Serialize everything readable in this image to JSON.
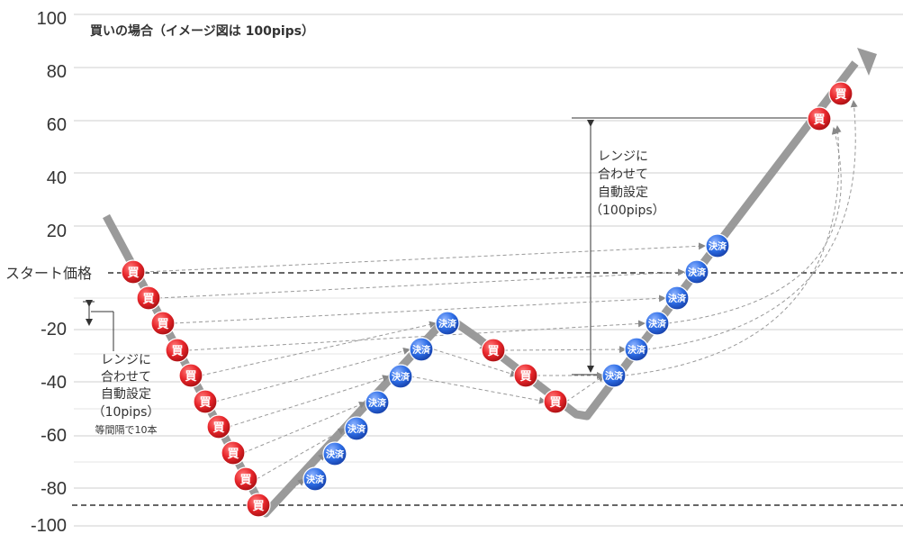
{
  "title": "買いの場合（イメージ図は 100pips）",
  "y_ticks": [
    "100",
    "80",
    "60",
    "40",
    "20",
    "-20",
    "-40",
    "-60",
    "-80",
    "-100"
  ],
  "start_label": "スタート価格",
  "range_label_small": [
    "レンジに",
    "合わせて",
    "自動設定",
    "（10pips）"
  ],
  "range_label_small_note": "等間隔で10本",
  "range_label_large": [
    "レンジに",
    "合わせて",
    "自動設定",
    "（100pips）"
  ],
  "buy_marker_label": "買",
  "settle_marker_label": "決済",
  "colors": {
    "buy": "#e8262b",
    "settle": "#2d6de6",
    "price_path": "#9a9a9a",
    "grid": "#cfcfcf"
  }
}
